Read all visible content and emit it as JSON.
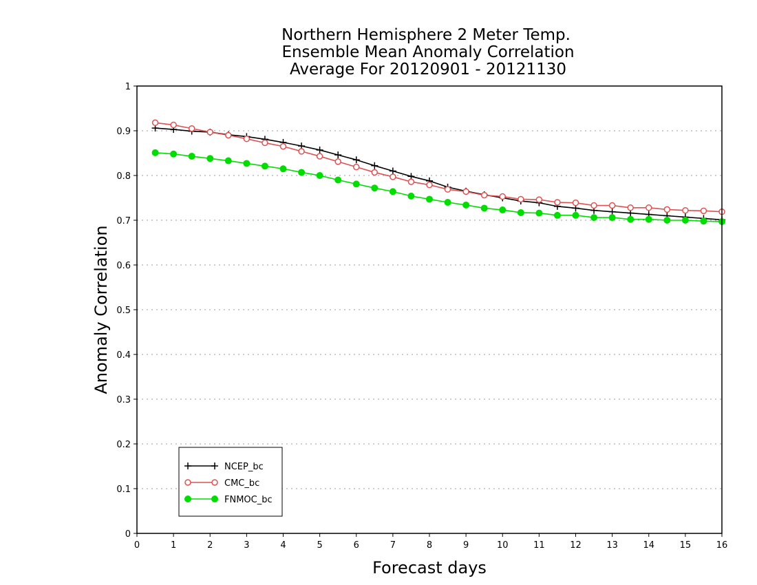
{
  "chart_data": {
    "type": "line",
    "title": [
      "Northern Hemisphere 2 Meter Temp.",
      "Ensemble Mean Anomaly Correlation",
      "Average For 20120901 - 20121130"
    ],
    "xlabel": "Forecast days",
    "ylabel": "Anomaly Correlation",
    "xlim": [
      0,
      16
    ],
    "ylim": [
      0,
      1
    ],
    "xticks": [
      "0",
      "1",
      "2",
      "3",
      "4",
      "5",
      "6",
      "7",
      "8",
      "9",
      "10",
      "11",
      "12",
      "13",
      "14",
      "15",
      "16"
    ],
    "yticks": [
      "0",
      "0.1",
      "0.2",
      "0.3",
      "0.4",
      "0.5",
      "0.6",
      "0.7",
      "0.8",
      "0.9",
      "1"
    ],
    "grid": true,
    "legend_position": "bottom-left",
    "x": [
      0.5,
      1.0,
      1.5,
      2.0,
      2.5,
      3.0,
      3.5,
      4.0,
      4.5,
      5.0,
      5.5,
      6.0,
      6.5,
      7.0,
      7.5,
      8.0,
      8.5,
      9.0,
      9.5,
      10.0,
      10.5,
      11.0,
      11.5,
      12.0,
      12.5,
      13.0,
      13.5,
      14.0,
      14.5,
      15.0,
      15.5,
      16.0
    ],
    "series": [
      {
        "name": "NCEP_bc",
        "color": "#000000",
        "marker": "plus",
        "values": [
          0.906,
          0.903,
          0.899,
          0.897,
          0.891,
          0.887,
          0.881,
          0.874,
          0.866,
          0.857,
          0.846,
          0.835,
          0.822,
          0.81,
          0.798,
          0.788,
          0.774,
          0.765,
          0.757,
          0.75,
          0.743,
          0.739,
          0.731,
          0.727,
          0.722,
          0.719,
          0.716,
          0.713,
          0.71,
          0.707,
          0.704,
          0.701
        ]
      },
      {
        "name": "CMC_bc",
        "color": "#e05050",
        "marker": "open-circle",
        "values": [
          0.918,
          0.913,
          0.905,
          0.897,
          0.89,
          0.882,
          0.873,
          0.865,
          0.854,
          0.843,
          0.831,
          0.819,
          0.807,
          0.797,
          0.786,
          0.779,
          0.769,
          0.764,
          0.756,
          0.753,
          0.747,
          0.746,
          0.74,
          0.739,
          0.733,
          0.733,
          0.728,
          0.728,
          0.724,
          0.722,
          0.721,
          0.719
        ]
      },
      {
        "name": "FNMOC_bc",
        "color": "#00dd00",
        "marker": "filled-circle",
        "values": [
          0.851,
          0.848,
          0.843,
          0.838,
          0.833,
          0.827,
          0.821,
          0.815,
          0.807,
          0.8,
          0.79,
          0.781,
          0.772,
          0.764,
          0.754,
          0.747,
          0.74,
          0.734,
          0.727,
          0.723,
          0.717,
          0.716,
          0.711,
          0.711,
          0.706,
          0.706,
          0.702,
          0.702,
          0.7,
          0.7,
          0.698,
          0.697
        ]
      }
    ]
  }
}
